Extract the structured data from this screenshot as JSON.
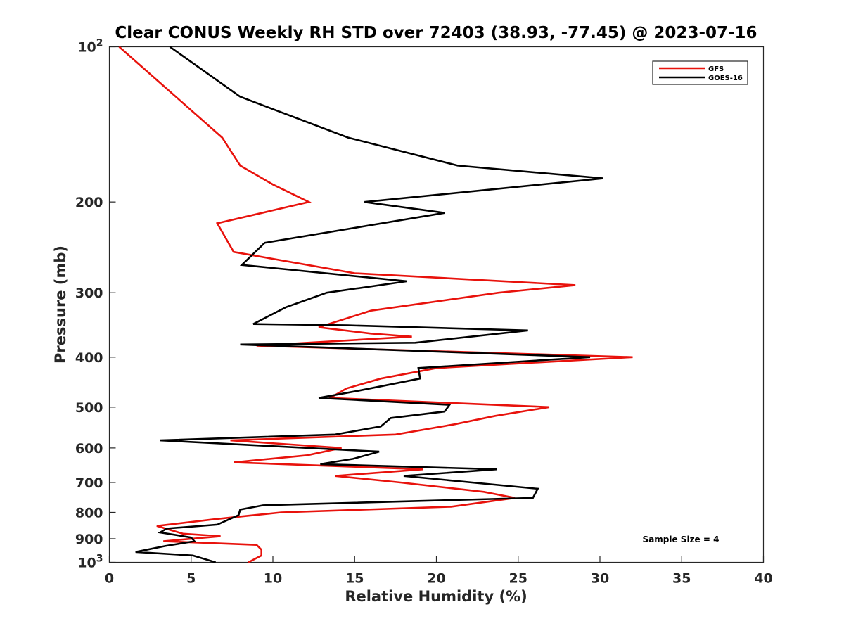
{
  "chart_data": {
    "type": "line",
    "title": "Clear CONUS Weekly RH STD over 72403 (38.93, -77.45) @ 2023-07-16",
    "xlabel": "Relative Humidity (%)",
    "ylabel": "Pressure (mb)",
    "xlim": [
      0,
      40
    ],
    "ylim": [
      100,
      1000
    ],
    "yscale": "log",
    "y_reversed": true,
    "grid": false,
    "legend_position": "top-right",
    "x_ticks": [
      "0",
      "5",
      "10",
      "15",
      "20",
      "25",
      "30",
      "35",
      "40"
    ],
    "y_ticks": [
      {
        "value": 100,
        "base": "10",
        "exp": "2"
      },
      {
        "value": 200,
        "label": "200"
      },
      {
        "value": 300,
        "label": "300"
      },
      {
        "value": 400,
        "label": "400"
      },
      {
        "value": 500,
        "label": "500"
      },
      {
        "value": 600,
        "label": "600"
      },
      {
        "value": 700,
        "label": "700"
      },
      {
        "value": 800,
        "label": "800"
      },
      {
        "value": 900,
        "label": "900"
      },
      {
        "value": 1000,
        "base": "10",
        "exp": "3"
      }
    ],
    "annotation": "Sample Size = 4",
    "series": [
      {
        "name": "GFS",
        "color": "#e8120c",
        "points": [
          [
            0.6,
            100
          ],
          [
            6.9,
            150
          ],
          [
            8.0,
            170
          ],
          [
            10.0,
            185
          ],
          [
            12.2,
            200
          ],
          [
            6.6,
            220
          ],
          [
            7.6,
            250
          ],
          [
            15.0,
            275
          ],
          [
            28.5,
            290
          ],
          [
            23.8,
            300
          ],
          [
            16.0,
            325
          ],
          [
            12.8,
            350
          ],
          [
            16.0,
            360
          ],
          [
            18.5,
            365
          ],
          [
            9.0,
            380
          ],
          [
            32.0,
            400
          ],
          [
            20.0,
            420
          ],
          [
            16.6,
            440
          ],
          [
            14.5,
            460
          ],
          [
            13.5,
            480
          ],
          [
            26.9,
            500
          ],
          [
            23.6,
            520
          ],
          [
            21.1,
            540
          ],
          [
            17.5,
            565
          ],
          [
            7.4,
            580
          ],
          [
            14.2,
            600
          ],
          [
            12.1,
            620
          ],
          [
            7.6,
            640
          ],
          [
            19.2,
            660
          ],
          [
            13.8,
            680
          ],
          [
            17.8,
            700
          ],
          [
            22.9,
            730
          ],
          [
            24.8,
            750
          ],
          [
            20.9,
            780
          ],
          [
            10.5,
            800
          ],
          [
            8.0,
            815
          ],
          [
            6.4,
            825
          ],
          [
            2.9,
            850
          ],
          [
            4.5,
            880
          ],
          [
            6.8,
            890
          ],
          [
            3.3,
            910
          ],
          [
            9.0,
            925
          ],
          [
            9.3,
            945
          ],
          [
            9.3,
            970
          ],
          [
            8.5,
            1000
          ]
        ]
      },
      {
        "name": "GOES-16",
        "color": "#000000",
        "points": [
          [
            3.7,
            100
          ],
          [
            8.0,
            125
          ],
          [
            14.6,
            150
          ],
          [
            21.3,
            170
          ],
          [
            30.2,
            180
          ],
          [
            15.6,
            200
          ],
          [
            20.5,
            210
          ],
          [
            9.5,
            240
          ],
          [
            8.1,
            265
          ],
          [
            18.2,
            285
          ],
          [
            13.3,
            300
          ],
          [
            10.8,
            320
          ],
          [
            8.8,
            345
          ],
          [
            14.6,
            347
          ],
          [
            25.6,
            355
          ],
          [
            18.7,
            375
          ],
          [
            8.0,
            378
          ],
          [
            29.4,
            400
          ],
          [
            18.9,
            420
          ],
          [
            19.0,
            440
          ],
          [
            15.2,
            465
          ],
          [
            12.8,
            480
          ],
          [
            20.8,
            495
          ],
          [
            20.5,
            510
          ],
          [
            17.2,
            525
          ],
          [
            16.6,
            545
          ],
          [
            13.8,
            565
          ],
          [
            3.1,
            580
          ],
          [
            16.5,
            610
          ],
          [
            14.9,
            630
          ],
          [
            12.9,
            645
          ],
          [
            23.7,
            660
          ],
          [
            18.0,
            680
          ],
          [
            26.2,
            720
          ],
          [
            25.9,
            750
          ],
          [
            9.4,
            775
          ],
          [
            8.0,
            790
          ],
          [
            7.9,
            810
          ],
          [
            6.6,
            845
          ],
          [
            3.5,
            860
          ],
          [
            3.1,
            875
          ],
          [
            5.0,
            895
          ],
          [
            5.2,
            910
          ],
          [
            3.4,
            930
          ],
          [
            1.6,
            955
          ],
          [
            5.1,
            970
          ],
          [
            6.5,
            1000
          ]
        ]
      }
    ]
  }
}
